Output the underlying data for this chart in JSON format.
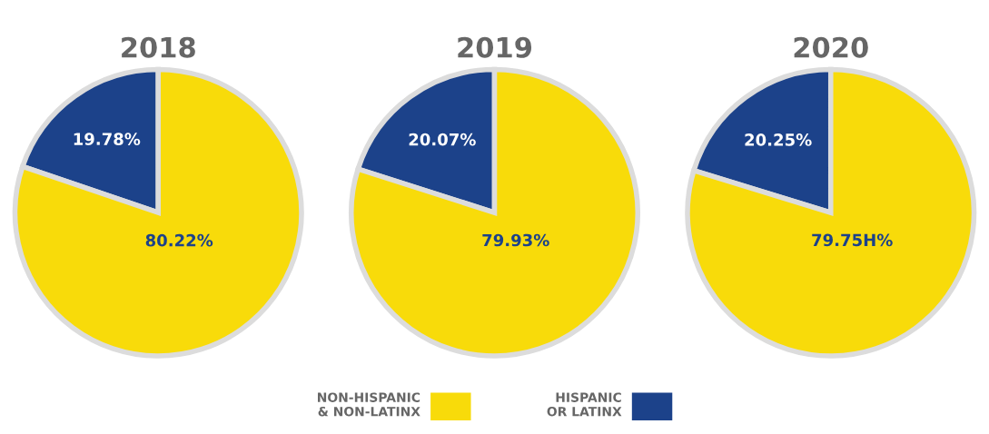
{
  "chart_data": [
    {
      "type": "pie",
      "title": "2018",
      "categories": [
        "HISPANIC\nOR LATINX",
        "NON-HISPANIC\n& NON-LATINX"
      ],
      "values": [
        19.78,
        80.22
      ],
      "colors": [
        "#1c428a",
        "#f8db0a"
      ],
      "value_labels": [
        "19.78%",
        "80.22%"
      ],
      "legend": "bottom"
    },
    {
      "type": "pie",
      "title": "2019",
      "categories": [
        null,
        null
      ],
      "values": [
        20.07,
        79.93
      ],
      "colors": [
        "#1c428a",
        "#f8db0a"
      ],
      "value_labels": [
        "20.07%",
        "79.93%"
      ]
    },
    {
      "type": "pie",
      "title": "2020",
      "categories": [
        null,
        null
      ],
      "values": [
        20.25,
        79.75
      ],
      "colors": [
        "#1c428a",
        "#f8db0a"
      ],
      "value_labels": [
        "20.25%",
        "79.75H%"
      ]
    }
  ]
}
